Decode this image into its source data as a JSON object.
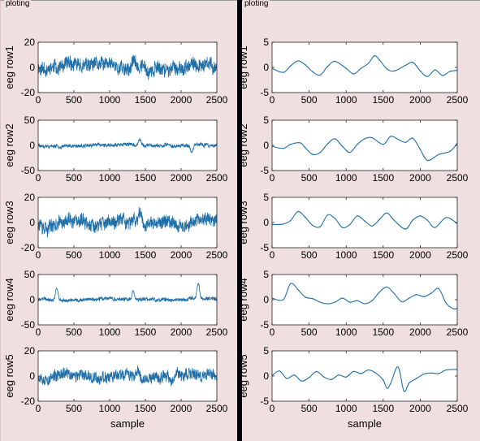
{
  "panels": {
    "left_title": "ploting",
    "right_title": "ploting"
  },
  "chart_data": [
    {
      "type": "line",
      "panel": "left",
      "ylabel": "eeg row1",
      "xlabel": "",
      "xlim": [
        0,
        2500
      ],
      "ylim": [
        -20,
        20
      ],
      "yticks": [
        -20,
        0,
        20
      ],
      "xticks": [
        0,
        500,
        1000,
        1500,
        2000,
        2500
      ],
      "noise": {
        "seed": 11,
        "amplitude": 6,
        "smooth": 0.15,
        "spikes": [
          [
            1340,
            8
          ]
        ]
      }
    },
    {
      "type": "line",
      "panel": "left",
      "ylabel": "eeg row2",
      "xlabel": "",
      "xlim": [
        0,
        2500
      ],
      "ylim": [
        -50,
        50
      ],
      "yticks": [
        -50,
        0,
        50
      ],
      "xticks": [
        0,
        500,
        1000,
        1500,
        2000,
        2500
      ],
      "noise": {
        "seed": 23,
        "amplitude": 4,
        "smooth": 0.2,
        "spikes": [
          [
            1420,
            10
          ],
          [
            2150,
            -12
          ]
        ]
      }
    },
    {
      "type": "line",
      "panel": "left",
      "ylabel": "eeg row3",
      "xlabel": "",
      "xlim": [
        0,
        2500
      ],
      "ylim": [
        -20,
        20
      ],
      "yticks": [
        -20,
        0,
        20
      ],
      "xticks": [
        0,
        500,
        1000,
        1500,
        2000,
        2500
      ],
      "noise": {
        "seed": 37,
        "amplitude": 6,
        "smooth": 0.15,
        "spikes": [
          [
            1430,
            10
          ]
        ]
      }
    },
    {
      "type": "line",
      "panel": "left",
      "ylabel": "eeg row4",
      "xlabel": "",
      "xlim": [
        0,
        2500
      ],
      "ylim": [
        -50,
        50
      ],
      "yticks": [
        -50,
        0,
        50
      ],
      "xticks": [
        0,
        500,
        1000,
        1500,
        2000,
        2500
      ],
      "noise": {
        "seed": 41,
        "amplitude": 4,
        "smooth": 0.2,
        "spikes": [
          [
            260,
            25
          ],
          [
            1330,
            20
          ],
          [
            2240,
            30
          ]
        ]
      }
    },
    {
      "type": "line",
      "panel": "left",
      "ylabel": "eeg row5",
      "xlabel": "sample",
      "xlim": [
        0,
        2500
      ],
      "ylim": [
        -20,
        20
      ],
      "yticks": [
        -20,
        0,
        20
      ],
      "xticks": [
        0,
        500,
        1000,
        1500,
        2000,
        2500
      ],
      "noise": {
        "seed": 53,
        "amplitude": 5,
        "smooth": 0.15,
        "spikes": [
          [
            1870,
            -8
          ],
          [
            1400,
            7
          ]
        ]
      }
    },
    {
      "type": "line",
      "panel": "right",
      "ylabel": "eeg row1",
      "xlabel": "",
      "xlim": [
        0,
        2500
      ],
      "ylim": [
        -5,
        5
      ],
      "yticks": [
        -5,
        0,
        5
      ],
      "xticks": [
        0,
        500,
        1000,
        1500,
        2000,
        2500
      ],
      "x": [
        0,
        150,
        250,
        350,
        450,
        550,
        650,
        750,
        850,
        1000,
        1100,
        1200,
        1300,
        1380,
        1450,
        1550,
        1650,
        1800,
        1900,
        2000,
        2100,
        2200,
        2300,
        2400,
        2500
      ],
      "y": [
        -0.2,
        -1.0,
        0.3,
        1.3,
        0.5,
        -0.9,
        -1.5,
        0.2,
        1.2,
        -0.2,
        -1.3,
        -0.2,
        0.8,
        2.3,
        1.5,
        -0.3,
        -0.7,
        0.4,
        1.0,
        -0.7,
        -1.8,
        -0.5,
        -1.6,
        -0.8,
        -0.6
      ]
    },
    {
      "type": "line",
      "panel": "right",
      "ylabel": "eeg row2",
      "xlabel": "",
      "xlim": [
        0,
        2500
      ],
      "ylim": [
        -5,
        5
      ],
      "yticks": [
        -5,
        0,
        5
      ],
      "xticks": [
        0,
        500,
        1000,
        1500,
        2000,
        2500
      ],
      "x": [
        0,
        150,
        250,
        380,
        450,
        550,
        650,
        750,
        850,
        950,
        1050,
        1150,
        1250,
        1350,
        1500,
        1600,
        1700,
        1800,
        1900,
        2000,
        2100,
        2250,
        2400,
        2500
      ],
      "y": [
        -0.2,
        -0.6,
        0.2,
        0.5,
        -0.5,
        -1.8,
        -1.4,
        0.3,
        1.3,
        -0.2,
        -1.4,
        0.2,
        1.3,
        1.5,
        0.2,
        1.8,
        1.2,
        0.6,
        1.4,
        -0.8,
        -3.0,
        -1.8,
        -1.2,
        0.4
      ]
    },
    {
      "type": "line",
      "panel": "right",
      "ylabel": "eeg row3",
      "xlabel": "",
      "xlim": [
        0,
        2500
      ],
      "ylim": [
        -5,
        5
      ],
      "yticks": [
        -5,
        0,
        5
      ],
      "xticks": [
        0,
        500,
        1000,
        1500,
        2000,
        2500
      ],
      "x": [
        0,
        150,
        250,
        350,
        450,
        550,
        650,
        750,
        850,
        950,
        1050,
        1150,
        1250,
        1350,
        1450,
        1550,
        1650,
        1800,
        1900,
        2000,
        2100,
        2200,
        2350,
        2500
      ],
      "y": [
        -0.4,
        -0.3,
        0.4,
        2.2,
        1.0,
        -0.6,
        -0.8,
        1.5,
        0.8,
        -1.0,
        -0.4,
        1.3,
        0.3,
        -0.7,
        0.6,
        1.9,
        0.4,
        -1.3,
        0.5,
        1.3,
        0.4,
        -1.0,
        1.0,
        -0.2
      ]
    },
    {
      "type": "line",
      "panel": "right",
      "ylabel": "eeg row4",
      "xlabel": "",
      "xlim": [
        0,
        2500
      ],
      "ylim": [
        -5,
        5
      ],
      "yticks": [
        -5,
        0,
        5
      ],
      "xticks": [
        0,
        500,
        1000,
        1500,
        2000,
        2500
      ],
      "x": [
        0,
        150,
        250,
        350,
        450,
        550,
        650,
        750,
        850,
        950,
        1050,
        1150,
        1250,
        1350,
        1450,
        1550,
        1650,
        1750,
        1850,
        1950,
        2050,
        2150,
        2250,
        2350,
        2450,
        2500
      ],
      "y": [
        0.3,
        0.0,
        3.2,
        2.0,
        0.5,
        0.2,
        -0.5,
        -0.8,
        -0.5,
        0.3,
        -0.5,
        -0.2,
        -0.8,
        -0.2,
        1.5,
        2.5,
        1.2,
        -0.4,
        0.3,
        1.0,
        0.6,
        1.3,
        2.2,
        -0.7,
        -1.8,
        -1.7
      ]
    },
    {
      "type": "line",
      "panel": "right",
      "ylabel": "eeg row5",
      "xlabel": "sample",
      "xlim": [
        0,
        2500
      ],
      "ylim": [
        -5,
        5
      ],
      "yticks": [
        -5,
        0,
        5
      ],
      "xticks": [
        0,
        500,
        1000,
        1500,
        2000,
        2500
      ],
      "x": [
        0,
        100,
        200,
        300,
        400,
        500,
        600,
        700,
        800,
        900,
        1000,
        1100,
        1200,
        1300,
        1400,
        1500,
        1550,
        1600,
        1700,
        1780,
        1850,
        1950,
        2050,
        2150,
        2250,
        2350,
        2500
      ],
      "y": [
        0.1,
        1.0,
        -0.5,
        0.2,
        -1.0,
        -0.3,
        0.9,
        -0.2,
        -0.7,
        0.2,
        -0.2,
        0.9,
        0.5,
        1.2,
        0.6,
        -0.8,
        -2.4,
        -1.5,
        1.8,
        -3.0,
        -1.4,
        -0.5,
        0.4,
        0.6,
        0.5,
        1.2,
        1.3
      ]
    }
  ]
}
